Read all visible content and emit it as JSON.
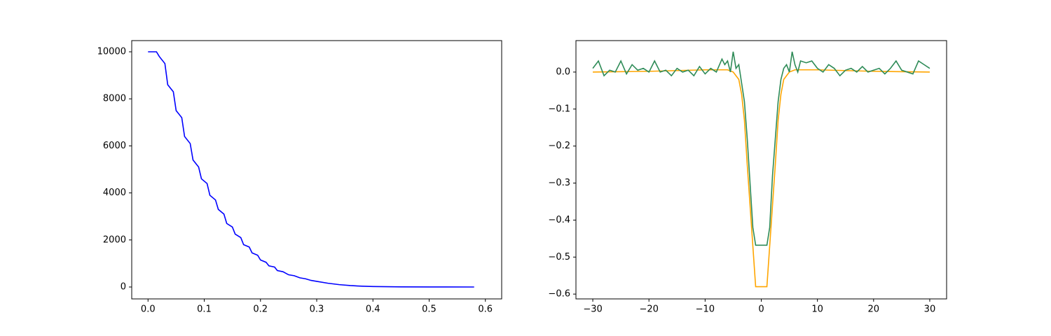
{
  "chart_data": [
    {
      "type": "line",
      "xlim": [
        -0.029,
        0.629
      ],
      "ylim": [
        -506,
        10476
      ],
      "xticks": [
        {
          "value": 0,
          "label": "0.0"
        },
        0.1,
        0.2,
        0.3,
        0.4,
        0.5,
        0.6
      ],
      "yticks": [
        0,
        2000,
        4000,
        6000,
        8000,
        10000
      ],
      "series": [
        {
          "color": "#0000ff",
          "x": [
            0,
            0.015,
            0.02,
            0.03,
            0.035,
            0.045,
            0.05,
            0.06,
            0.065,
            0.075,
            0.08,
            0.09,
            0.095,
            0.105,
            0.11,
            0.12,
            0.125,
            0.135,
            0.14,
            0.15,
            0.155,
            0.165,
            0.17,
            0.18,
            0.185,
            0.195,
            0.2,
            0.21,
            0.215,
            0.225,
            0.23,
            0.24,
            0.25,
            0.26,
            0.27,
            0.28,
            0.29,
            0.3,
            0.32,
            0.34,
            0.36,
            0.38,
            0.4,
            0.45,
            0.5,
            0.58
          ],
          "values": [
            10000,
            10000,
            9800,
            9500,
            8600,
            8300,
            7500,
            7200,
            6400,
            6100,
            5400,
            5100,
            4600,
            4400,
            3900,
            3700,
            3300,
            3100,
            2700,
            2550,
            2250,
            2100,
            1800,
            1700,
            1450,
            1350,
            1150,
            1050,
            900,
            850,
            700,
            650,
            520,
            480,
            390,
            350,
            280,
            240,
            160,
            100,
            60,
            35,
            20,
            6,
            2,
            0
          ]
        }
      ]
    },
    {
      "type": "line",
      "xlim": [
        -33,
        33
      ],
      "ylim": [
        -0.613,
        0.085
      ],
      "xticks": [
        {
          "value": -30,
          "label": "−30"
        },
        {
          "value": -20,
          "label": "−20"
        },
        {
          "value": -10,
          "label": "−10"
        },
        0,
        10,
        20,
        30
      ],
      "yticks": [
        {
          "value": 0,
          "label": "0.0"
        },
        {
          "value": -0.1,
          "label": "−0.1"
        },
        {
          "value": -0.2,
          "label": "−0.2"
        },
        {
          "value": -0.3,
          "label": "−0.3"
        },
        {
          "value": -0.4,
          "label": "−0.4"
        },
        {
          "value": -0.5,
          "label": "−0.5"
        },
        {
          "value": -0.6,
          "label": "−0.6"
        }
      ],
      "series": [
        {
          "color": "#ffa500",
          "x": [
            -30,
            -20,
            -10,
            -6,
            -5,
            -4,
            -3.5,
            -3,
            -2.5,
            -2,
            -1.5,
            -1,
            1,
            1.5,
            2,
            2.5,
            3,
            3.5,
            4,
            5,
            6,
            10,
            20,
            30
          ],
          "values": [
            0,
            0.002,
            0.006,
            0.006,
            0.0,
            -0.02,
            -0.06,
            -0.13,
            -0.25,
            -0.36,
            -0.47,
            -0.58,
            -0.58,
            -0.47,
            -0.36,
            -0.25,
            -0.13,
            -0.06,
            -0.02,
            0.0,
            0.006,
            0.006,
            0.002,
            0
          ]
        },
        {
          "color": "#2e8b57",
          "x": [
            -30,
            -29,
            -28,
            -27,
            -26,
            -25,
            -24,
            -23,
            -22,
            -21,
            -20,
            -19,
            -18,
            -17,
            -16,
            -15,
            -14,
            -13,
            -12,
            -11,
            -10,
            -9,
            -8,
            -7,
            -6.5,
            -6,
            -5.5,
            -5,
            -4.5,
            -4,
            -3.5,
            -3,
            -2.5,
            -2,
            -1.5,
            -1,
            1,
            1.5,
            2,
            2.5,
            3,
            3.5,
            4,
            4.5,
            5,
            5.5,
            6,
            6.5,
            7,
            8,
            9,
            10,
            11,
            12,
            13,
            14,
            15,
            16,
            17,
            18,
            19,
            20,
            21,
            22,
            23,
            24,
            25,
            26,
            27,
            28,
            29,
            30
          ],
          "values": [
            0.01,
            0.03,
            -0.01,
            0.005,
            0.0,
            0.03,
            -0.005,
            0.02,
            0.005,
            0.01,
            0.0,
            0.03,
            0.0,
            0.005,
            -0.01,
            0.01,
            0.0,
            0.005,
            -0.01,
            0.015,
            -0.005,
            0.01,
            0.0,
            0.035,
            0.02,
            0.03,
            0.0,
            0.055,
            0.01,
            0.02,
            -0.03,
            -0.08,
            -0.18,
            -0.3,
            -0.42,
            -0.468,
            -0.468,
            -0.42,
            -0.28,
            -0.18,
            -0.08,
            -0.02,
            0.01,
            0.02,
            0.0,
            0.055,
            0.02,
            0.0,
            0.03,
            0.025,
            0.03,
            0.01,
            0.0,
            0.02,
            0.01,
            -0.01,
            0.005,
            0.01,
            0.0,
            0.015,
            0.0,
            0.005,
            0.01,
            -0.005,
            0.01,
            0.03,
            0.005,
            0.0,
            -0.005,
            0.03,
            0.02,
            0.01
          ]
        }
      ]
    }
  ]
}
